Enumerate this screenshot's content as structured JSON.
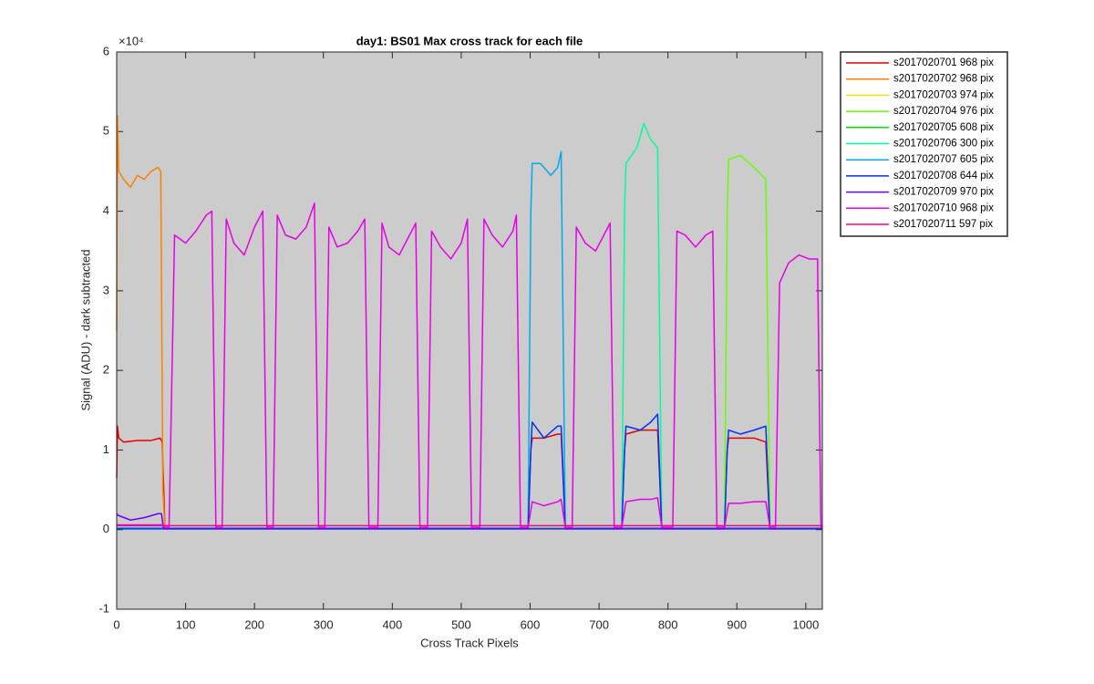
{
  "chart_data": {
    "type": "line",
    "title": "day1: BS01  Max cross track for each file",
    "x_label": "Cross Track Pixels",
    "y_label": "Signal (ADU) - dark subtracted",
    "y_exponent_label": "×10⁴",
    "xlim": [
      0,
      1024
    ],
    "xticks": [
      0,
      100,
      200,
      300,
      400,
      500,
      600,
      700,
      800,
      900,
      1000
    ],
    "ylim": [
      -1,
      6
    ],
    "yticks": [
      -1,
      0,
      1,
      2,
      3,
      4,
      5,
      6
    ],
    "background": "#cccccc",
    "legend": "outside-right",
    "series": [
      {
        "name": "s2017020701 968 pix",
        "color": "#e60000",
        "x": [
          0,
          1,
          3,
          10,
          30,
          50,
          63,
          66,
          70,
          597,
          601,
          603,
          620,
          640,
          645,
          651,
          733,
          737,
          739,
          760,
          775,
          785,
          791,
          882,
          886,
          888,
          905,
          925,
          942,
          948,
          1024
        ],
        "values": [
          0.65,
          1.3,
          1.15,
          1.1,
          1.12,
          1.12,
          1.15,
          1.1,
          0.02,
          0.02,
          1.0,
          1.15,
          1.15,
          1.2,
          1.2,
          0.02,
          0.02,
          1.0,
          1.2,
          1.25,
          1.25,
          1.25,
          0.02,
          0.02,
          1.0,
          1.15,
          1.15,
          1.15,
          1.1,
          0.02,
          0.02
        ]
      },
      {
        "name": "s2017020702 968 pix",
        "color": "#ff8000",
        "x": [
          0,
          1,
          3,
          10,
          20,
          30,
          40,
          50,
          60,
          64,
          67,
          70,
          1024
        ],
        "values": [
          2.5,
          5.2,
          4.5,
          4.4,
          4.3,
          4.45,
          4.4,
          4.5,
          4.55,
          4.5,
          0.5,
          0.02,
          0.02
        ]
      },
      {
        "name": "s2017020703 974 pix",
        "color": "#e6e600",
        "x": [
          0,
          1024
        ],
        "values": [
          0.02,
          0.02
        ]
      },
      {
        "name": "s2017020704 976 pix",
        "color": "#66ff00",
        "x": [
          0,
          882,
          886,
          888,
          905,
          925,
          942,
          948,
          1024
        ],
        "values": [
          0.02,
          0.02,
          4.0,
          4.65,
          4.7,
          4.55,
          4.4,
          0.02,
          0.02
        ]
      },
      {
        "name": "s2017020705 608 pix",
        "color": "#00e600",
        "x": [
          0,
          1024
        ],
        "values": [
          0.02,
          0.02
        ]
      },
      {
        "name": "s2017020706 300 pix",
        "color": "#00ff99",
        "x": [
          0,
          733,
          737,
          739,
          755,
          765,
          775,
          785,
          791,
          1024
        ],
        "values": [
          0.02,
          0.02,
          4.0,
          4.6,
          4.8,
          5.1,
          4.9,
          4.8,
          0.02,
          0.02
        ]
      },
      {
        "name": "s2017020707 605 pix",
        "color": "#00aaee",
        "x": [
          0,
          597,
          601,
          603,
          615,
          630,
          640,
          645,
          651,
          1024
        ],
        "values": [
          0.02,
          0.02,
          4.0,
          4.6,
          4.6,
          4.45,
          4.55,
          4.75,
          0.02,
          0.02
        ]
      },
      {
        "name": "s2017020708 644 pix",
        "color": "#0033ff",
        "x": [
          0,
          597,
          601,
          603,
          620,
          640,
          645,
          651,
          733,
          737,
          739,
          760,
          775,
          785,
          791,
          882,
          886,
          888,
          905,
          925,
          942,
          948,
          1024
        ],
        "values": [
          0.01,
          0.01,
          1.0,
          1.35,
          1.15,
          1.3,
          1.3,
          0.01,
          0.01,
          1.0,
          1.3,
          1.25,
          1.35,
          1.45,
          0.01,
          0.01,
          1.0,
          1.25,
          1.2,
          1.25,
          1.3,
          0.01,
          0.01
        ]
      },
      {
        "name": "s2017020709 970 pix",
        "color": "#6600ff",
        "x": [
          0,
          2,
          20,
          40,
          60,
          65,
          68,
          1024
        ],
        "values": [
          0.2,
          0.18,
          0.12,
          0.15,
          0.2,
          0.2,
          0.01,
          0.01
        ]
      },
      {
        "name": "s2017020710 968 pix",
        "color": "#e600e6",
        "x": [
          0,
          66,
          70,
          76,
          84,
          100,
          115,
          130,
          138,
          144,
          153,
          159,
          170,
          185,
          200,
          212,
          218,
          227,
          233,
          245,
          260,
          275,
          287,
          293,
          302,
          308,
          320,
          335,
          350,
          360,
          366,
          379,
          385,
          395,
          410,
          425,
          434,
          440,
          451,
          457,
          470,
          485,
          500,
          509,
          515,
          527,
          533,
          545,
          560,
          575,
          580,
          586,
          597,
          603,
          620,
          640,
          645,
          651,
          661,
          667,
          680,
          695,
          710,
          716,
          722,
          733,
          739,
          760,
          775,
          785,
          791,
          807,
          813,
          825,
          840,
          855,
          865,
          871,
          882,
          888,
          905,
          925,
          942,
          948,
          956,
          962,
          975,
          990,
          1005,
          1017,
          1022,
          1024
        ],
        "values": [
          0.06,
          0.06,
          0.03,
          0.03,
          3.7,
          3.6,
          3.75,
          3.95,
          4.0,
          0.03,
          0.03,
          3.9,
          3.6,
          3.45,
          3.8,
          4.0,
          0.03,
          0.03,
          3.95,
          3.7,
          3.65,
          3.8,
          4.1,
          0.03,
          0.03,
          3.8,
          3.55,
          3.6,
          3.75,
          3.9,
          0.03,
          0.03,
          3.85,
          3.55,
          3.45,
          3.7,
          3.85,
          0.03,
          0.03,
          3.75,
          3.55,
          3.4,
          3.6,
          3.9,
          0.03,
          0.03,
          3.9,
          3.7,
          3.55,
          3.75,
          3.95,
          0.03,
          0.03,
          0.35,
          0.3,
          0.35,
          0.38,
          0.03,
          0.03,
          3.8,
          3.6,
          3.5,
          3.75,
          3.85,
          0.03,
          0.03,
          0.35,
          0.38,
          0.38,
          0.4,
          0.03,
          0.03,
          3.75,
          3.7,
          3.55,
          3.7,
          3.75,
          0.03,
          0.03,
          0.33,
          0.33,
          0.35,
          0.35,
          0.03,
          0.03,
          3.1,
          3.35,
          3.45,
          3.4,
          3.4,
          0.03,
          0.03
        ]
      },
      {
        "name": "s2017020711 597 pix",
        "color": "#ff0080",
        "x": [
          0,
          1024
        ],
        "values": [
          0.05,
          0.05
        ]
      }
    ]
  }
}
